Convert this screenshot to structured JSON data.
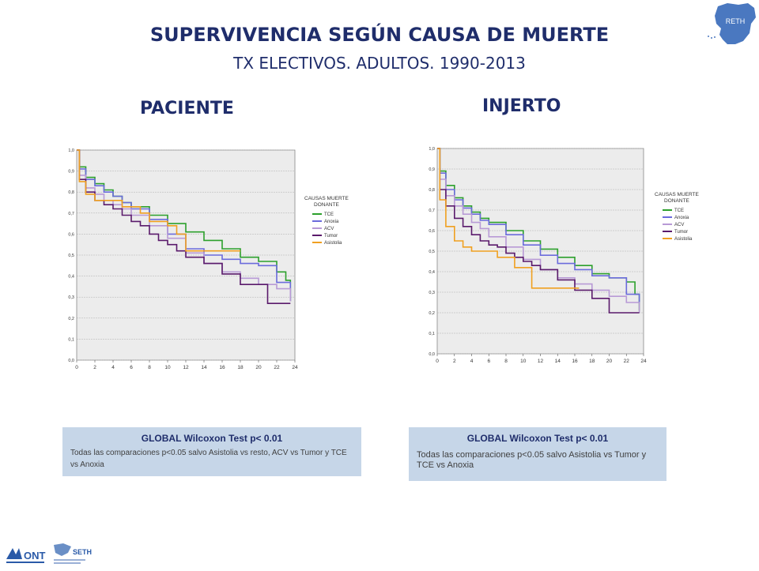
{
  "header": {
    "title": "SUPERVIVENCIA SEGÚN CAUSA DE MUERTE",
    "subtitle": "TX ELECTIVOS. ADULTOS. 1990-2013",
    "logo_text": "RETH"
  },
  "panels": {
    "left_title": "PACIENTE",
    "right_title": "INJERTO"
  },
  "legend": {
    "title_line1": "CAUSAS MUERTE",
    "title_line2": "DONANTE"
  },
  "colors": {
    "TCE": "#2ca02c",
    "Anoxia": "#6b6bdc",
    "ACV": "#b89ad6",
    "Tumor": "#5a1a6b",
    "Asistolia": "#f0a020",
    "plot_bg": "#ececec",
    "grid": "#b0b0b0"
  },
  "chart_data": [
    {
      "type": "line",
      "panel": "PACIENTE",
      "xticks": [
        "0",
        "2",
        "4",
        "6",
        "8",
        "10",
        "12",
        "14",
        "16",
        "18",
        "20",
        "22",
        "24"
      ],
      "yticks": [
        "0,0",
        "0,1",
        "0,2",
        "0,3",
        "0,4",
        "0,5",
        "0,6",
        "0,7",
        "0,8",
        "0,9",
        "1,0"
      ],
      "xlim": [
        0,
        24
      ],
      "ylim": [
        0,
        1
      ],
      "grid": true,
      "legend_position": "right",
      "series": [
        {
          "name": "TCE",
          "x": [
            0,
            0.3,
            1,
            2,
            3,
            4,
            5,
            6,
            8,
            10,
            12,
            14,
            16,
            18,
            20,
            22,
            23,
            23.5
          ],
          "y": [
            1,
            0.92,
            0.87,
            0.84,
            0.81,
            0.78,
            0.75,
            0.73,
            0.69,
            0.65,
            0.61,
            0.57,
            0.53,
            0.49,
            0.47,
            0.42,
            0.38,
            0.28
          ]
        },
        {
          "name": "Anoxia",
          "x": [
            0,
            0.3,
            1,
            2,
            3,
            4,
            5,
            6,
            8,
            10,
            12,
            14,
            16,
            18,
            20,
            21,
            22,
            23.5
          ],
          "y": [
            1,
            0.91,
            0.86,
            0.83,
            0.8,
            0.78,
            0.75,
            0.72,
            0.67,
            0.6,
            0.53,
            0.5,
            0.48,
            0.46,
            0.45,
            0.45,
            0.37,
            0.28
          ]
        },
        {
          "name": "ACV",
          "x": [
            0,
            0.3,
            1,
            2,
            3,
            4,
            5,
            6,
            8,
            10,
            12,
            14,
            16,
            18,
            20,
            22,
            23.5
          ],
          "y": [
            1,
            0.88,
            0.82,
            0.79,
            0.76,
            0.74,
            0.72,
            0.69,
            0.64,
            0.58,
            0.51,
            0.46,
            0.42,
            0.39,
            0.36,
            0.34,
            0.28
          ]
        },
        {
          "name": "Tumor",
          "x": [
            0,
            0.3,
            1,
            2,
            3,
            4,
            5,
            6,
            7,
            8,
            9,
            10,
            11,
            12,
            14,
            16,
            18,
            20,
            21,
            22,
            23.5
          ],
          "y": [
            1,
            0.86,
            0.8,
            0.76,
            0.74,
            0.72,
            0.69,
            0.66,
            0.64,
            0.6,
            0.57,
            0.55,
            0.52,
            0.49,
            0.46,
            0.41,
            0.36,
            0.36,
            0.27,
            0.27,
            0.27
          ]
        },
        {
          "name": "Asistolia",
          "x": [
            0,
            0.3,
            1,
            2,
            3,
            4,
            5,
            6,
            7,
            8,
            9,
            10,
            11,
            12,
            14,
            16,
            18
          ],
          "y": [
            1,
            0.85,
            0.79,
            0.76,
            0.76,
            0.76,
            0.73,
            0.73,
            0.7,
            0.66,
            0.66,
            0.64,
            0.6,
            0.52,
            0.52,
            0.52,
            0.52
          ]
        }
      ]
    },
    {
      "type": "line",
      "panel": "INJERTO",
      "xticks": [
        "0",
        "2",
        "4",
        "6",
        "8",
        "10",
        "12",
        "14",
        "16",
        "18",
        "20",
        "22",
        "24"
      ],
      "yticks": [
        "0,0",
        "0,1",
        "0,2",
        "0,3",
        "0,4",
        "0,5",
        "0,6",
        "0,7",
        "0,8",
        "0,9",
        "1,0"
      ],
      "xlim": [
        0,
        24
      ],
      "ylim": [
        0,
        1
      ],
      "grid": true,
      "legend_position": "right",
      "series": [
        {
          "name": "TCE",
          "x": [
            0,
            0.3,
            1,
            2,
            3,
            4,
            5,
            6,
            8,
            10,
            12,
            14,
            16,
            18,
            20,
            22,
            23,
            23.5
          ],
          "y": [
            1,
            0.89,
            0.82,
            0.76,
            0.72,
            0.69,
            0.66,
            0.64,
            0.6,
            0.55,
            0.51,
            0.47,
            0.43,
            0.39,
            0.37,
            0.35,
            0.29,
            0.21
          ]
        },
        {
          "name": "Anoxia",
          "x": [
            0,
            0.3,
            1,
            2,
            3,
            4,
            5,
            6,
            8,
            10,
            12,
            14,
            16,
            18,
            20,
            22,
            23.5
          ],
          "y": [
            1,
            0.88,
            0.8,
            0.75,
            0.71,
            0.68,
            0.65,
            0.63,
            0.58,
            0.53,
            0.48,
            0.44,
            0.41,
            0.38,
            0.37,
            0.29,
            0.25
          ]
        },
        {
          "name": "ACV",
          "x": [
            0,
            0.3,
            1,
            2,
            3,
            4,
            5,
            6,
            8,
            10,
            12,
            14,
            16,
            18,
            20,
            22,
            23.5
          ],
          "y": [
            1,
            0.85,
            0.77,
            0.72,
            0.68,
            0.64,
            0.61,
            0.57,
            0.52,
            0.46,
            0.41,
            0.37,
            0.34,
            0.31,
            0.28,
            0.25,
            0.2
          ]
        },
        {
          "name": "Tumor",
          "x": [
            0,
            0.3,
            1,
            2,
            3,
            4,
            5,
            6,
            7,
            8,
            9,
            10,
            11,
            12,
            14,
            16,
            18,
            20,
            22,
            23.5
          ],
          "y": [
            1,
            0.8,
            0.72,
            0.66,
            0.62,
            0.58,
            0.55,
            0.53,
            0.52,
            0.49,
            0.47,
            0.45,
            0.43,
            0.41,
            0.36,
            0.31,
            0.27,
            0.2,
            0.2,
            0.2
          ]
        },
        {
          "name": "Asistolia",
          "x": [
            0,
            0.3,
            1,
            2,
            3,
            4,
            5,
            6,
            7,
            8,
            9,
            10,
            11,
            12,
            14,
            16,
            16.5
          ],
          "y": [
            1,
            0.75,
            0.62,
            0.55,
            0.52,
            0.5,
            0.5,
            0.5,
            0.47,
            0.47,
            0.42,
            0.42,
            0.32,
            0.32,
            0.32,
            0.32,
            0.32
          ]
        }
      ]
    }
  ],
  "notes": {
    "left": {
      "heading": "GLOBAL Wilcoxon Test p< 0.01",
      "text": "Todas las comparaciones p<0.05 salvo Asistolia vs resto, ACV vs Tumor y TCE vs Anoxia"
    },
    "right": {
      "heading": "GLOBAL Wilcoxon Test p< 0.01",
      "text": "Todas las comparaciones p<0.05 salvo Asistolia vs Tumor y TCE vs Anoxia"
    }
  },
  "footer": {
    "ont_logo_text": "ONT",
    "seth_logo_text": "SETH"
  }
}
